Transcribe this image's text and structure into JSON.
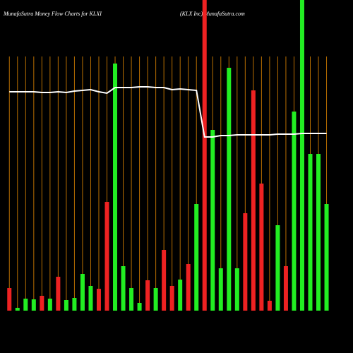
{
  "chart_data": {
    "type": "bar",
    "title": "MunafaSutra  Money Flow  Charts for KLXI",
    "subtitle": "(KLX  Inc) MunafaSutra.com",
    "categories": [
      null,
      null,
      null,
      null,
      null,
      null,
      null,
      null,
      null,
      null,
      null,
      null,
      null,
      null,
      null,
      null,
      null,
      null,
      null,
      null,
      null,
      null,
      null,
      null,
      null,
      null,
      null,
      null,
      null,
      null,
      null,
      null,
      null,
      null,
      null,
      null,
      null,
      null,
      null,
      null
    ],
    "values": [
      32,
      4,
      17,
      16,
      21,
      17,
      48,
      15,
      18,
      52,
      35,
      31,
      154,
      350,
      63,
      32,
      11,
      43,
      32,
      86,
      35,
      44,
      66,
      151,
      440,
      256,
      60,
      344,
      60,
      138,
      312,
      180,
      14,
      121,
      63,
      282,
      440,
      222,
      222,
      151
    ],
    "colors": [
      "#ee2222",
      "#22ee22",
      "#22ee22",
      "#22ee22",
      "#ee2222",
      "#22ee22",
      "#ee2222",
      "#22ee22",
      "#22ee22",
      "#22ee22",
      "#22ee22",
      "#ee2222",
      "#ee2222",
      "#22ee22",
      "#22ee22",
      "#22ee22",
      "#22ee22",
      "#ee2222",
      "#22ee22",
      "#ee2222",
      "#ee2222",
      "#22ee22",
      "#ee2222",
      "#22ee22",
      "#ee2222",
      "#22ee22",
      "#22ee22",
      "#22ee22",
      "#22ee22",
      "#ee2222",
      "#ee2222",
      "#ee2222",
      "#ee2222",
      "#22ee22",
      "#ee2222",
      "#22ee22",
      "#22ee22",
      "#22ee22",
      "#22ee22",
      "#22ee22"
    ],
    "line_values": [
      310,
      310,
      310,
      310,
      309,
      309,
      310,
      309,
      311,
      312,
      313,
      310,
      308,
      316,
      316,
      316,
      317,
      317,
      316,
      316,
      313,
      314,
      313,
      312,
      246,
      246,
      248,
      248,
      249,
      249,
      249,
      249,
      249,
      250,
      250,
      250,
      251,
      251,
      251,
      251
    ],
    "line_color": "#ffffff",
    "ylim": [
      0,
      440
    ]
  }
}
